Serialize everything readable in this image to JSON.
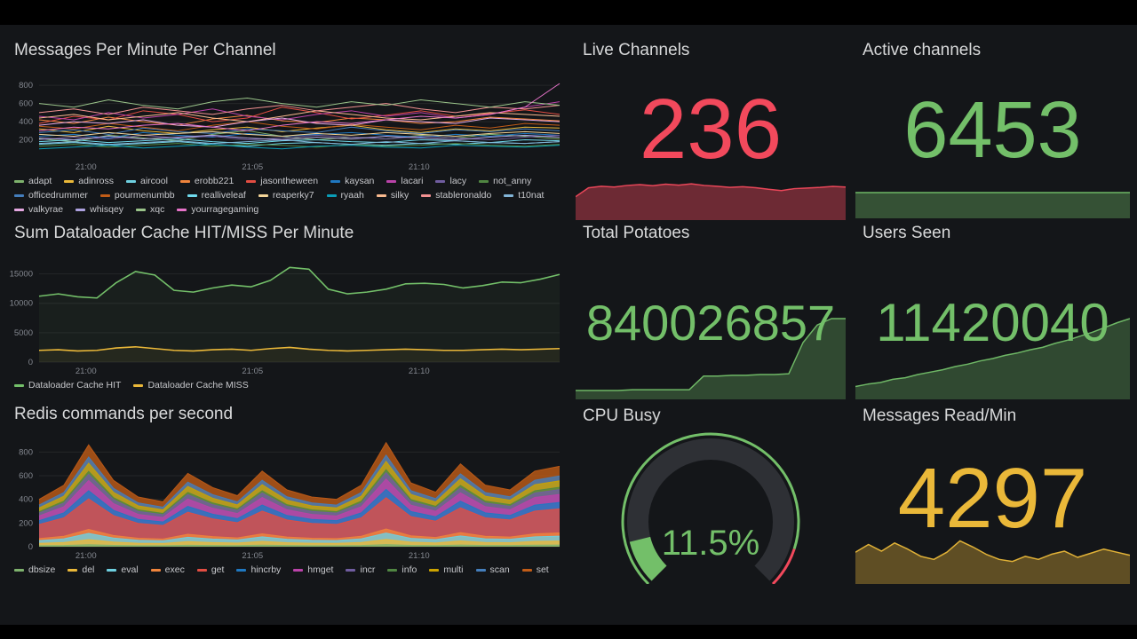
{
  "panels": {
    "messages": {
      "title": "Messages Per Minute Per Channel"
    },
    "cache": {
      "title": "Sum Dataloader Cache HIT/MISS Per Minute"
    },
    "redis": {
      "title": "Redis commands per second"
    },
    "live_channels": {
      "title": "Live Channels",
      "value": "236",
      "color": "#F2495C"
    },
    "active_channels": {
      "title": "Active channels",
      "value": "6453",
      "color": "#73BF69"
    },
    "total_potatoes": {
      "title": "Total Potatoes",
      "value": "840026857",
      "color": "#73BF69"
    },
    "users_seen": {
      "title": "Users Seen",
      "value": "11420040",
      "color": "#73BF69"
    },
    "cpu_busy": {
      "title": "CPU Busy",
      "value": "11.5%",
      "color": "#73BF69"
    },
    "messages_read": {
      "title": "Messages Read/Min",
      "value": "4297",
      "color": "#EAB839"
    }
  },
  "chart_data": [
    {
      "key": "messages",
      "type": "line",
      "title": "Messages Per Minute Per Channel",
      "ylim": [
        0,
        880
      ],
      "yticks": [
        200,
        400,
        600,
        800
      ],
      "xticks": [
        {
          "label": "21:00",
          "pos": 0.09
        },
        {
          "label": "21:05",
          "pos": 0.41
        },
        {
          "label": "21:10",
          "pos": 0.73
        }
      ],
      "series": [
        {
          "name": "adapt",
          "color": "#7EB26D",
          "values": [
            210,
            180,
            250,
            220,
            190,
            260,
            300,
            240,
            200,
            230,
            210,
            250,
            220,
            260,
            240,
            210
          ]
        },
        {
          "name": "adinross",
          "color": "#EAB839",
          "values": [
            320,
            280,
            350,
            300,
            270,
            310,
            340,
            290,
            330,
            360,
            310,
            280,
            320,
            300,
            340,
            330
          ]
        },
        {
          "name": "aircool",
          "color": "#6ED0E0",
          "values": [
            150,
            170,
            140,
            160,
            180,
            150,
            130,
            160,
            170,
            150,
            140,
            160,
            150,
            170,
            160,
            180
          ]
        },
        {
          "name": "erobb221",
          "color": "#EF843C",
          "values": [
            420,
            380,
            450,
            400,
            360,
            430,
            470,
            410,
            390,
            440,
            420,
            380,
            400,
            450,
            430,
            410
          ]
        },
        {
          "name": "jasontheween",
          "color": "#E24D42",
          "values": [
            380,
            460,
            420,
            520,
            480,
            400,
            440,
            560,
            500,
            430,
            470,
            520,
            460,
            490,
            530,
            480
          ]
        },
        {
          "name": "kaysan",
          "color": "#1F78C1",
          "values": [
            240,
            260,
            220,
            280,
            250,
            230,
            270,
            240,
            260,
            280,
            250,
            230,
            260,
            240,
            270,
            250
          ]
        },
        {
          "name": "lacari",
          "color": "#BA43A9",
          "values": [
            460,
            420,
            500,
            440,
            480,
            540,
            460,
            420,
            480,
            520,
            460,
            500,
            440,
            480,
            560,
            620
          ]
        },
        {
          "name": "lacy",
          "color": "#705DA0",
          "values": [
            200,
            230,
            210,
            250,
            220,
            240,
            200,
            220,
            250,
            230,
            210,
            240,
            220,
            200,
            230,
            250
          ]
        },
        {
          "name": "not_anny",
          "color": "#508642",
          "values": [
            130,
            150,
            120,
            140,
            160,
            130,
            150,
            140,
            120,
            150,
            130,
            140,
            160,
            140,
            130,
            150
          ]
        },
        {
          "name": "officedrummer",
          "color": "#447EBC",
          "values": [
            280,
            310,
            260,
            330,
            290,
            270,
            320,
            300,
            280,
            340,
            300,
            270,
            310,
            290,
            320,
            300
          ]
        },
        {
          "name": "pourmenumbb",
          "color": "#C15C17",
          "values": [
            350,
            320,
            380,
            340,
            300,
            360,
            400,
            350,
            320,
            370,
            340,
            310,
            360,
            330,
            380,
            360
          ]
        },
        {
          "name": "realliveleaf",
          "color": "#70DBED",
          "values": [
            180,
            200,
            170,
            190,
            210,
            180,
            160,
            190,
            200,
            180,
            170,
            200,
            190,
            170,
            200,
            190
          ]
        },
        {
          "name": "reaperky7",
          "color": "#F4D598",
          "values": [
            260,
            240,
            280,
            250,
            270,
            290,
            260,
            240,
            270,
            250,
            280,
            260,
            240,
            270,
            290,
            270
          ]
        },
        {
          "name": "ryaah",
          "color": "#0A9DB7",
          "values": [
            100,
            120,
            140,
            110,
            130,
            150,
            120,
            100,
            130,
            140,
            120,
            110,
            140,
            130,
            120,
            140
          ]
        },
        {
          "name": "silky",
          "color": "#F9BA8F",
          "values": [
            440,
            480,
            420,
            460,
            500,
            440,
            400,
            460,
            520,
            480,
            440,
            420,
            460,
            500,
            480,
            460
          ]
        },
        {
          "name": "stableronaldo",
          "color": "#F29191",
          "values": [
            500,
            540,
            480,
            560,
            520,
            480,
            540,
            580,
            520,
            560,
            600,
            540,
            500,
            560,
            540,
            580
          ]
        },
        {
          "name": "t10nat",
          "color": "#82B5D8",
          "values": [
            160,
            180,
            150,
            170,
            190,
            160,
            180,
            200,
            170,
            150,
            180,
            160,
            190,
            170,
            160,
            180
          ]
        },
        {
          "name": "valkyrae",
          "color": "#E5A8E2",
          "values": [
            360,
            400,
            380,
            420,
            360,
            340,
            400,
            440,
            380,
            360,
            420,
            400,
            380,
            440,
            420,
            400
          ]
        },
        {
          "name": "whisqey",
          "color": "#AEA2E0",
          "values": [
            220,
            200,
            240,
            210,
            230,
            250,
            220,
            200,
            230,
            210,
            240,
            220,
            200,
            230,
            250,
            230
          ]
        },
        {
          "name": "xqc",
          "color": "#9AC48A",
          "values": [
            600,
            560,
            640,
            580,
            540,
            620,
            660,
            600,
            560,
            620,
            580,
            640,
            600,
            560,
            620,
            580
          ]
        },
        {
          "name": "yourragegaming",
          "color": "#E773C9",
          "values": [
            300,
            340,
            320,
            360,
            380,
            340,
            300,
            360,
            400,
            380,
            420,
            460,
            440,
            480,
            560,
            820
          ]
        }
      ]
    },
    {
      "key": "cache",
      "type": "line",
      "title": "Sum Dataloader Cache HIT/MISS Per Minute",
      "ylim": [
        0,
        17500
      ],
      "yticks": [
        0,
        5000,
        10000,
        15000
      ],
      "line_width": 1.6,
      "fill_opacity": 0.06,
      "xticks": [
        {
          "label": "21:00",
          "pos": 0.09
        },
        {
          "label": "21:05",
          "pos": 0.41
        },
        {
          "label": "21:10",
          "pos": 0.73
        }
      ],
      "series": [
        {
          "name": "Dataloader Cache HIT",
          "color": "#73BF69",
          "values": [
            11200,
            11600,
            11100,
            10900,
            13500,
            15400,
            14800,
            12200,
            11900,
            12600,
            13100,
            12800,
            13900,
            16100,
            15800,
            12400,
            11600,
            11900,
            12400,
            13300,
            13400,
            13200,
            12600,
            13000,
            13600,
            13500,
            14100,
            14900
          ]
        },
        {
          "name": "Dataloader Cache MISS",
          "color": "#EAB839",
          "values": [
            2000,
            2100,
            1900,
            2000,
            2400,
            2600,
            2300,
            2000,
            1900,
            2100,
            2200,
            2000,
            2300,
            2500,
            2200,
            2000,
            1900,
            2000,
            2100,
            2200,
            2100,
            2000,
            2000,
            2100,
            2200,
            2100,
            2200,
            2300
          ]
        }
      ]
    },
    {
      "key": "redis",
      "type": "line",
      "stacked": true,
      "title": "Redis commands per second",
      "ylim": [
        0,
        900
      ],
      "yticks": [
        0,
        200,
        400,
        600,
        800
      ],
      "xticks": [
        {
          "label": "21:00",
          "pos": 0.09
        },
        {
          "label": "21:05",
          "pos": 0.41
        },
        {
          "label": "21:10",
          "pos": 0.73
        }
      ],
      "series": [
        {
          "name": "dbsize",
          "color": "#7EB26D",
          "values": [
            8,
            10,
            17,
            11,
            8,
            8,
            12,
            10,
            9,
            13,
            10,
            8,
            8,
            10,
            18,
            11,
            9,
            14,
            10,
            10,
            13,
            14
          ]
        },
        {
          "name": "del",
          "color": "#EAB839",
          "values": [
            20,
            26,
            43,
            28,
            21,
            19,
            31,
            25,
            22,
            32,
            24,
            21,
            20,
            26,
            44,
            27,
            23,
            35,
            26,
            24,
            32,
            34
          ]
        },
        {
          "name": "eval",
          "color": "#6ED0E0",
          "values": [
            24,
            31,
            52,
            34,
            25,
            23,
            37,
            30,
            26,
            38,
            29,
            25,
            24,
            31,
            53,
            32,
            28,
            42,
            31,
            29,
            38,
            41
          ]
        },
        {
          "name": "exec",
          "color": "#EF843C",
          "values": [
            16,
            21,
            34,
            22,
            17,
            15,
            25,
            20,
            17,
            26,
            19,
            17,
            16,
            21,
            35,
            22,
            18,
            28,
            21,
            19,
            26,
            27
          ]
        },
        {
          "name": "get",
          "color": "#E24D42",
          "values": [
            120,
            156,
            258,
            168,
            126,
            114,
            186,
            150,
            129,
            192,
            144,
            126,
            120,
            156,
            264,
            162,
            138,
            210,
            156,
            144,
            192,
            204
          ]
        },
        {
          "name": "hincrby",
          "color": "#1F78C1",
          "values": [
            32,
            42,
            69,
            45,
            34,
            30,
            50,
            40,
            34,
            51,
            38,
            34,
            32,
            42,
            70,
            43,
            37,
            56,
            42,
            38,
            51,
            54
          ]
        },
        {
          "name": "hmget",
          "color": "#BA43A9",
          "values": [
            40,
            52,
            86,
            56,
            42,
            38,
            62,
            50,
            43,
            64,
            48,
            42,
            40,
            52,
            88,
            54,
            46,
            70,
            52,
            48,
            64,
            68
          ]
        },
        {
          "name": "incr",
          "color": "#705DA0",
          "values": [
            24,
            31,
            52,
            34,
            25,
            23,
            37,
            30,
            26,
            38,
            29,
            25,
            24,
            31,
            53,
            32,
            28,
            42,
            31,
            29,
            38,
            41
          ]
        },
        {
          "name": "info",
          "color": "#508642",
          "values": [
            12,
            16,
            26,
            17,
            13,
            11,
            19,
            15,
            13,
            19,
            14,
            13,
            12,
            16,
            26,
            16,
            14,
            21,
            16,
            14,
            19,
            20
          ]
        },
        {
          "name": "multi",
          "color": "#CCA300",
          "values": [
            32,
            42,
            69,
            45,
            34,
            30,
            50,
            40,
            34,
            51,
            38,
            34,
            32,
            42,
            70,
            43,
            37,
            56,
            42,
            38,
            51,
            54
          ]
        },
        {
          "name": "scan",
          "color": "#447EBC",
          "values": [
            24,
            31,
            52,
            34,
            25,
            23,
            37,
            30,
            26,
            38,
            29,
            25,
            24,
            31,
            53,
            32,
            28,
            42,
            31,
            29,
            38,
            41
          ]
        },
        {
          "name": "set",
          "color": "#C15C17",
          "values": [
            48,
            62,
            103,
            67,
            50,
            46,
            74,
            60,
            52,
            77,
            58,
            50,
            48,
            62,
            106,
            65,
            55,
            84,
            62,
            58,
            77,
            82
          ]
        }
      ]
    },
    {
      "key": "live_spark",
      "type": "area",
      "title": "Live Channels sparkline",
      "color": "#F2495C",
      "max": 320,
      "fill_opacity": 0.4,
      "values": [
        140,
        195,
        205,
        200,
        210,
        215,
        208,
        218,
        212,
        220,
        210,
        205,
        198,
        202,
        196,
        186,
        178,
        190,
        194,
        198,
        204,
        200
      ]
    },
    {
      "key": "active_spark",
      "type": "area",
      "title": "Active channels sparkline",
      "color": "#73BF69",
      "max": 1,
      "fill_opacity": 0.35,
      "values": [
        1,
        1
      ]
    },
    {
      "key": "potatoes_spark",
      "type": "area",
      "title": "Total Potatoes sparkline",
      "color": "#73BF69",
      "max": 100,
      "fill_opacity": 0.3,
      "values": [
        10,
        10,
        10,
        10,
        11,
        11,
        11,
        11,
        11,
        28,
        28,
        29,
        29,
        30,
        30,
        31,
        70,
        92,
        100,
        100
      ]
    },
    {
      "key": "users_spark",
      "type": "area",
      "title": "Users Seen sparkline",
      "color": "#73BF69",
      "max": 100,
      "fill_opacity": 0.3,
      "values": [
        15,
        18,
        20,
        24,
        26,
        30,
        33,
        36,
        40,
        43,
        47,
        50,
        54,
        57,
        61,
        64,
        69,
        73,
        78,
        83,
        89,
        95,
        100
      ]
    },
    {
      "key": "cpu_gauge",
      "type": "gauge",
      "title": "CPU Busy",
      "value": 11.5,
      "min": 0,
      "max": 100,
      "label": "11.5%",
      "color": "#73BF69",
      "track_color": "#2e3035",
      "threshold": 90,
      "threshold_color": "#F2495C"
    },
    {
      "key": "read_spark",
      "type": "area",
      "title": "Messages Read/Min sparkline",
      "color": "#EAB839",
      "max": 100,
      "fill_opacity": 0.35,
      "values": [
        60,
        75,
        62,
        78,
        66,
        52,
        46,
        60,
        82,
        70,
        56,
        46,
        42,
        52,
        46,
        56,
        62,
        50,
        58,
        66,
        60,
        54
      ]
    }
  ]
}
